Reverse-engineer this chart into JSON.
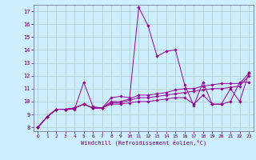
{
  "xlabel": "Windchill (Refroidissement éolien,°C)",
  "bg_color": "#cceeff",
  "grid_color": "#aacccc",
  "line_color": "#990099",
  "xlim": [
    -0.5,
    23.5
  ],
  "ylim": [
    7.7,
    17.5
  ],
  "xticks": [
    0,
    1,
    2,
    3,
    4,
    5,
    6,
    7,
    8,
    9,
    10,
    11,
    12,
    13,
    14,
    15,
    16,
    17,
    18,
    19,
    20,
    21,
    22,
    23
  ],
  "yticks": [
    8,
    9,
    10,
    11,
    12,
    13,
    14,
    15,
    16,
    17
  ],
  "series": [
    [
      8.0,
      8.8,
      9.4,
      9.4,
      9.4,
      11.5,
      9.6,
      9.5,
      10.3,
      10.4,
      10.3,
      17.3,
      15.9,
      13.5,
      13.9,
      14.0,
      11.3,
      9.7,
      11.5,
      9.8,
      9.8,
      11.0,
      10.0,
      12.2
    ],
    [
      8.0,
      8.8,
      9.4,
      9.4,
      9.5,
      9.8,
      9.5,
      9.5,
      10.0,
      10.0,
      10.2,
      10.5,
      10.5,
      10.6,
      10.7,
      10.9,
      11.0,
      11.0,
      11.2,
      11.3,
      11.4,
      11.4,
      11.4,
      12.2
    ],
    [
      8.0,
      8.8,
      9.4,
      9.4,
      9.5,
      9.8,
      9.5,
      9.5,
      9.9,
      9.9,
      10.1,
      10.3,
      10.3,
      10.4,
      10.5,
      10.6,
      10.7,
      10.8,
      10.9,
      11.0,
      11.0,
      11.1,
      11.2,
      12.0
    ],
    [
      8.0,
      8.8,
      9.4,
      9.4,
      9.5,
      9.8,
      9.5,
      9.5,
      9.8,
      9.8,
      9.9,
      10.0,
      10.0,
      10.1,
      10.2,
      10.3,
      10.3,
      9.8,
      10.5,
      9.8,
      9.8,
      10.0,
      11.5,
      11.5
    ]
  ]
}
